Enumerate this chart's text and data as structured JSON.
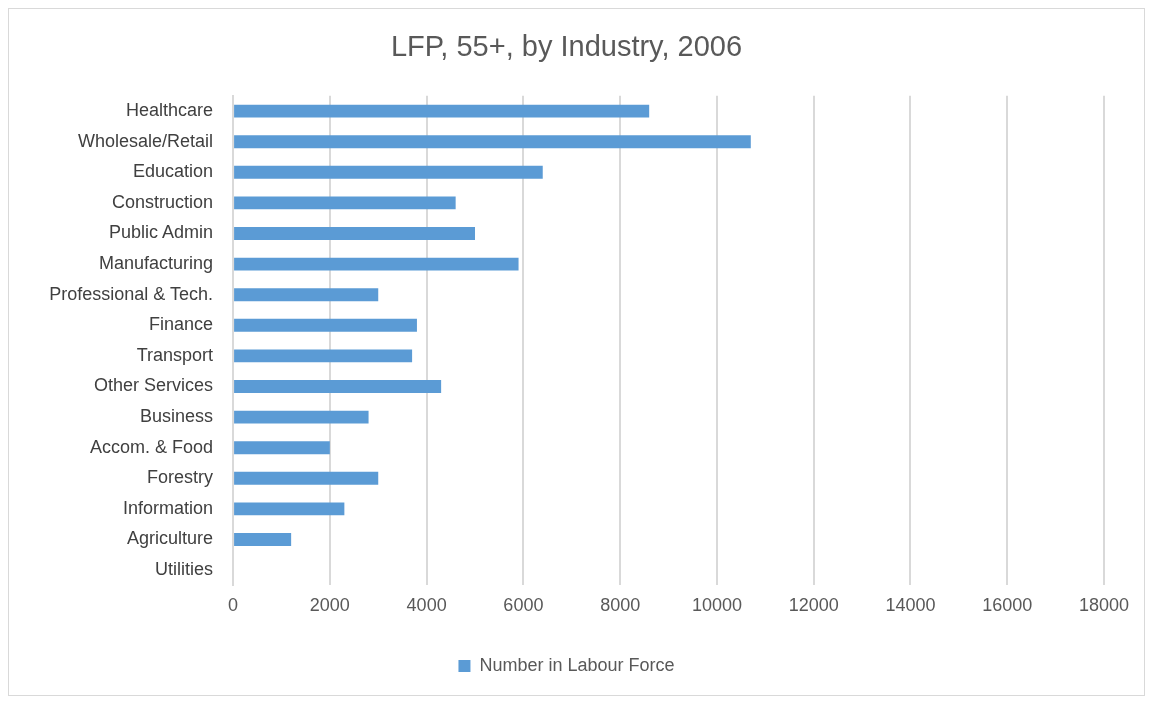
{
  "chart_data": {
    "type": "bar",
    "orientation": "horizontal",
    "title": "LFP, 55+, by Industry, 2006",
    "categories": [
      "Healthcare",
      "Wholesale/Retail",
      "Education",
      "Construction",
      "Public Admin",
      "Manufacturing",
      "Professional & Tech.",
      "Finance",
      "Transport",
      "Other Services",
      "Business",
      "Accom. & Food",
      "Forestry",
      "Information",
      "Agriculture",
      "Utilities"
    ],
    "series": [
      {
        "name": "Number in Labour Force",
        "color": "#5b9bd5",
        "values": [
          8600,
          10700,
          6400,
          4600,
          5000,
          5900,
          3000,
          3800,
          3700,
          4300,
          2800,
          2000,
          3000,
          2300,
          1200,
          0
        ]
      }
    ],
    "xlim": [
      0,
      18000
    ],
    "xticks": [
      0,
      2000,
      4000,
      6000,
      8000,
      10000,
      12000,
      14000,
      16000,
      18000
    ],
    "grid": "x",
    "legend": "bottom"
  }
}
